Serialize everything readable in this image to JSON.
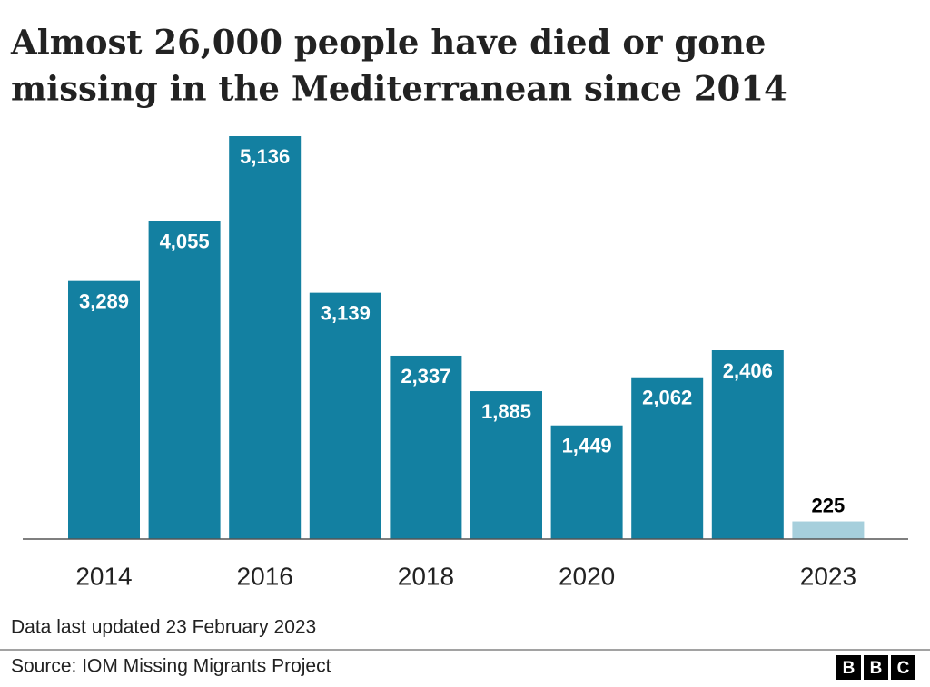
{
  "chart_data": {
    "type": "bar",
    "title": [
      "Almost 26,000 people have died or gone",
      "missing in the Mediterranean since 2014"
    ],
    "categories": [
      "2014",
      null,
      "2016",
      null,
      "2018",
      null,
      "2020",
      null,
      null,
      "2023"
    ],
    "values": [
      3289,
      4055,
      5136,
      3139,
      2337,
      1885,
      1449,
      2062,
      2406,
      225
    ],
    "value_labels": [
      "3,289",
      "4,055",
      "5,136",
      "3,139",
      "2,337",
      "1,885",
      "1,449",
      "2,062",
      "2,406",
      "225"
    ],
    "colors": [
      "#1380a1",
      "#1380a1",
      "#1380a1",
      "#1380a1",
      "#1380a1",
      "#1380a1",
      "#1380a1",
      "#1380a1",
      "#1380a1",
      "#a6cfdc"
    ],
    "note": "Data last updated 23 February 2023",
    "source": "Source: IOM Missing Migrants Project",
    "logo": [
      "B",
      "B",
      "C"
    ]
  }
}
